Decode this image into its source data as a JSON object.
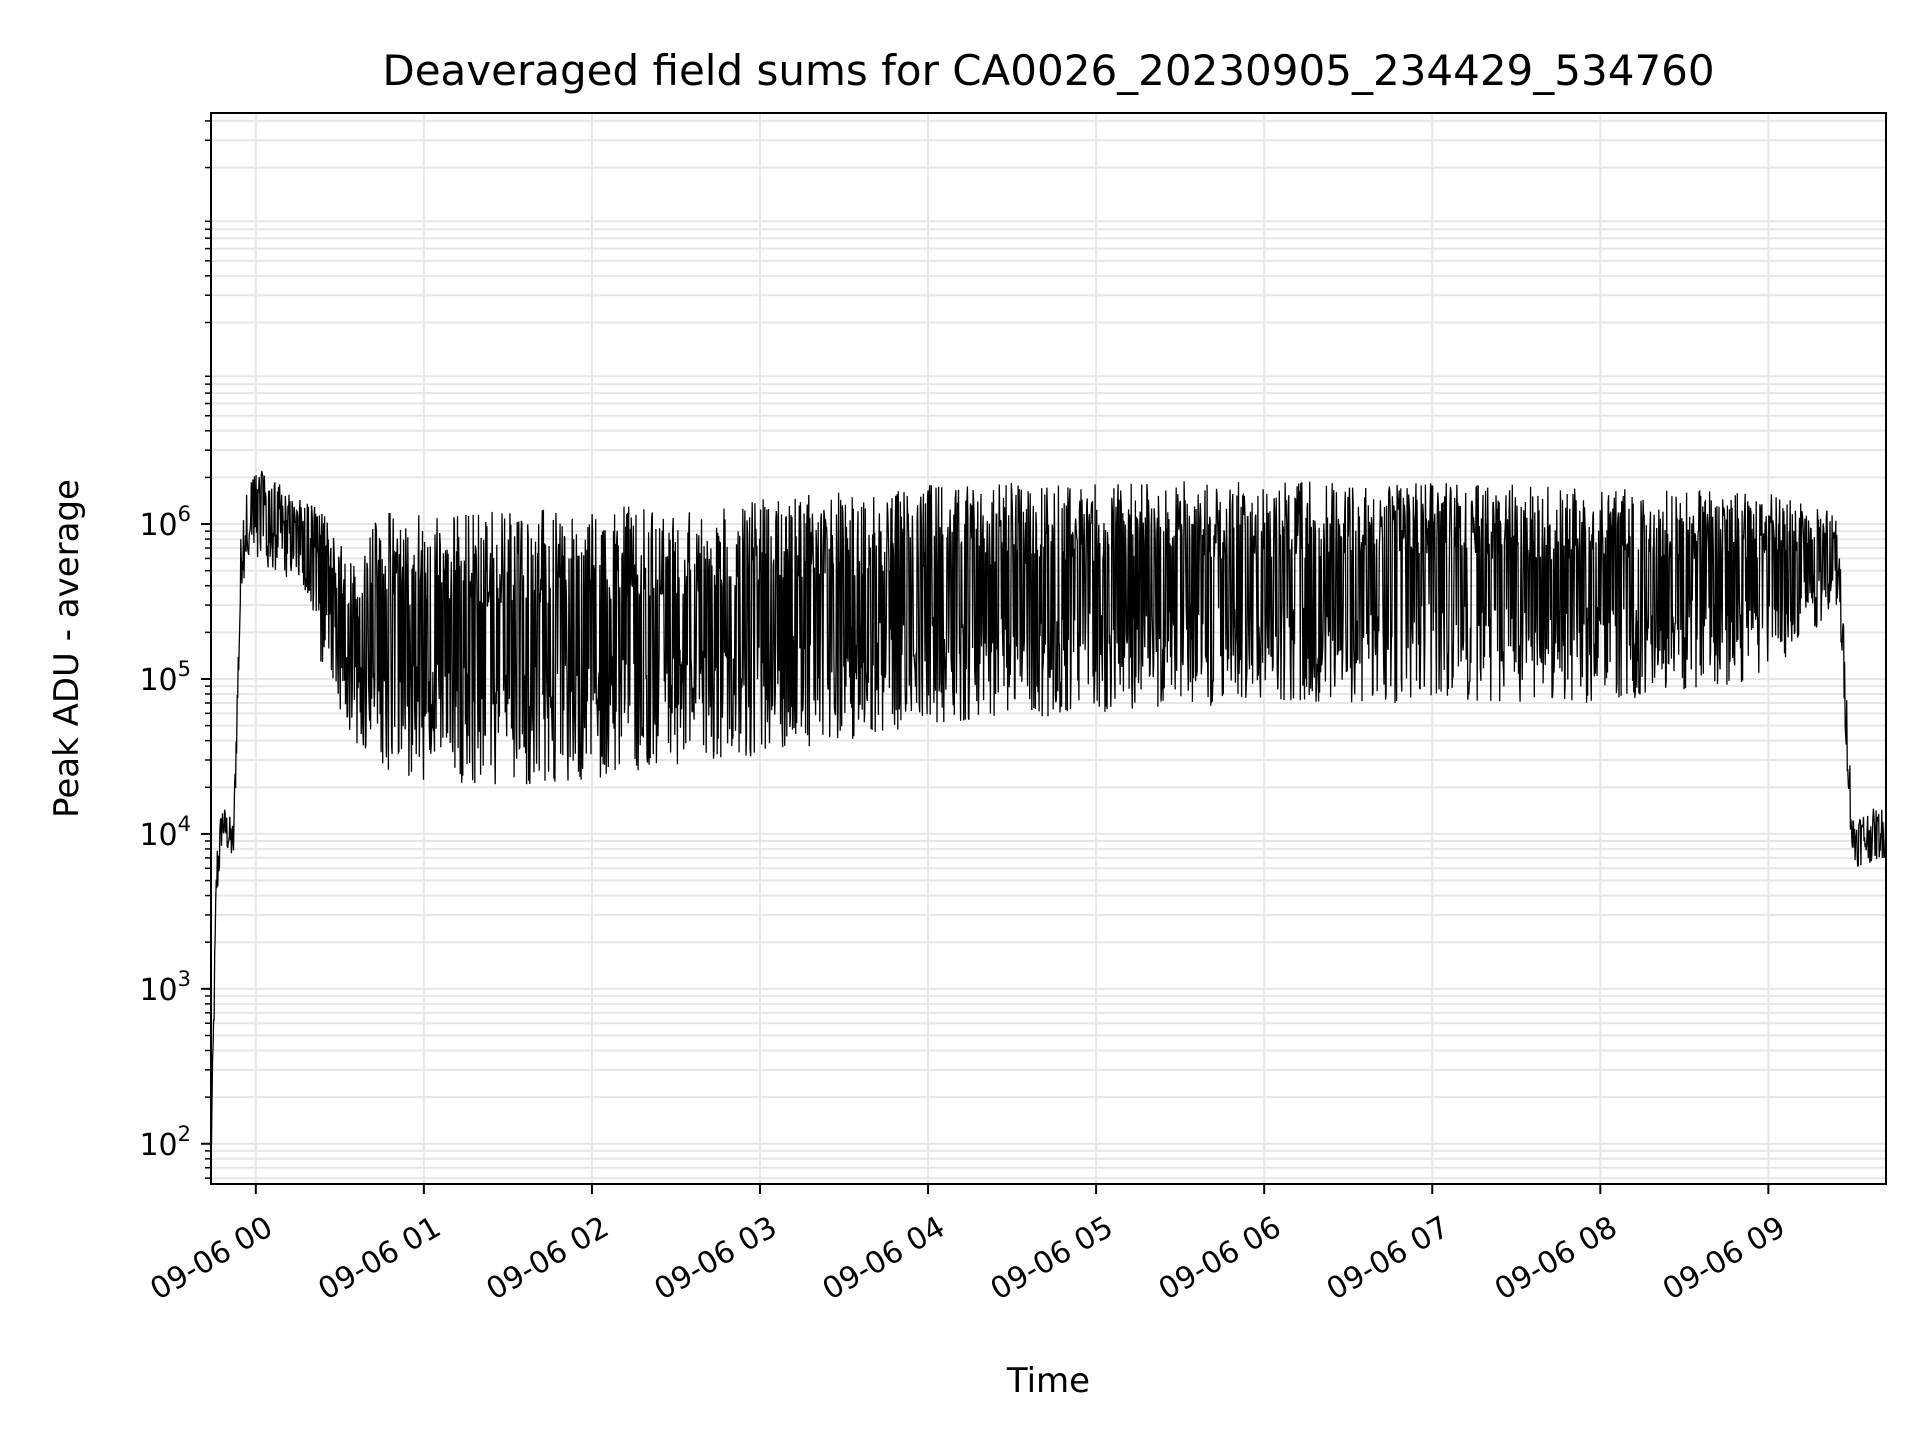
{
  "chart_data": {
    "type": "line",
    "title": "Deaveraged field sums for CA0026_20230905_234429_534760",
    "xlabel": "Time",
    "ylabel": "Peak ADU - average",
    "yscale": "log",
    "ylim": [
      55,
      450000000
    ],
    "xlim": [
      "2023-09-05 23:44",
      "2023-09-06 09:42"
    ],
    "x_ticks": [
      {
        "t": "2023-09-06 00:00",
        "label": "09-06 00"
      },
      {
        "t": "2023-09-06 01:00",
        "label": "09-06 01"
      },
      {
        "t": "2023-09-06 02:00",
        "label": "09-06 02"
      },
      {
        "t": "2023-09-06 03:00",
        "label": "09-06 03"
      },
      {
        "t": "2023-09-06 04:00",
        "label": "09-06 04"
      },
      {
        "t": "2023-09-06 05:00",
        "label": "09-06 05"
      },
      {
        "t": "2023-09-06 06:00",
        "label": "09-06 06"
      },
      {
        "t": "2023-09-06 07:00",
        "label": "09-06 07"
      },
      {
        "t": "2023-09-06 08:00",
        "label": "09-06 08"
      },
      {
        "t": "2023-09-06 09:00",
        "label": "09-06 09"
      }
    ],
    "y_ticks": [
      {
        "value": 100,
        "base": "10",
        "exp": "2"
      },
      {
        "value": 1000,
        "base": "10",
        "exp": "3"
      },
      {
        "value": 10000,
        "base": "10",
        "exp": "4"
      },
      {
        "value": 100000,
        "base": "10",
        "exp": "5"
      },
      {
        "value": 1000000,
        "base": "10",
        "exp": "6"
      }
    ],
    "grid": true,
    "line_color": "#000000",
    "grid_color": "#e6e6e6",
    "series": [
      {
        "envelope": [
          {
            "t": "2023-09-05 23:44",
            "low": 60,
            "high": 100
          },
          {
            "t": "2023-09-05 23:46",
            "low": 3000,
            "high": 9000
          },
          {
            "t": "2023-09-05 23:48",
            "low": 9000,
            "high": 16000
          },
          {
            "t": "2023-09-05 23:52",
            "low": 6000,
            "high": 12000
          },
          {
            "t": "2023-09-05 23:55",
            "low": 400000,
            "high": 1500000
          },
          {
            "t": "2023-09-05 23:58",
            "low": 600000,
            "high": 2500000
          },
          {
            "t": "2023-09-06 00:15",
            "low": 400000,
            "high": 1500000
          },
          {
            "t": "2023-09-06 00:25",
            "low": 100000,
            "high": 1200000
          },
          {
            "t": "2023-09-06 00:35",
            "low": 40000,
            "high": 600000
          },
          {
            "t": "2023-09-06 00:45",
            "low": 25000,
            "high": 1200000
          },
          {
            "t": "2023-09-06 01:00",
            "low": 22000,
            "high": 1200000
          },
          {
            "t": "2023-09-06 01:30",
            "low": 20000,
            "high": 1200000
          },
          {
            "t": "2023-09-06 02:00",
            "low": 22000,
            "high": 1300000
          },
          {
            "t": "2023-09-06 02:30",
            "low": 28000,
            "high": 1300000
          },
          {
            "t": "2023-09-06 03:00",
            "low": 32000,
            "high": 1600000
          },
          {
            "t": "2023-09-06 03:30",
            "low": 40000,
            "high": 1700000
          },
          {
            "t": "2023-09-06 04:00",
            "low": 50000,
            "high": 1800000
          },
          {
            "t": "2023-09-06 05:00",
            "low": 60000,
            "high": 1900000
          },
          {
            "t": "2023-09-06 06:00",
            "low": 70000,
            "high": 1900000
          },
          {
            "t": "2023-09-06 07:00",
            "low": 70000,
            "high": 1900000
          },
          {
            "t": "2023-09-06 08:00",
            "low": 70000,
            "high": 1700000
          },
          {
            "t": "2023-09-06 09:00",
            "low": 100000,
            "high": 1600000
          },
          {
            "t": "2023-09-06 09:25",
            "low": 300000,
            "high": 1200000
          },
          {
            "t": "2023-09-06 09:30",
            "low": 6000,
            "high": 14000
          },
          {
            "t": "2023-09-06 09:42",
            "low": 7000,
            "high": 15000
          }
        ]
      }
    ]
  }
}
